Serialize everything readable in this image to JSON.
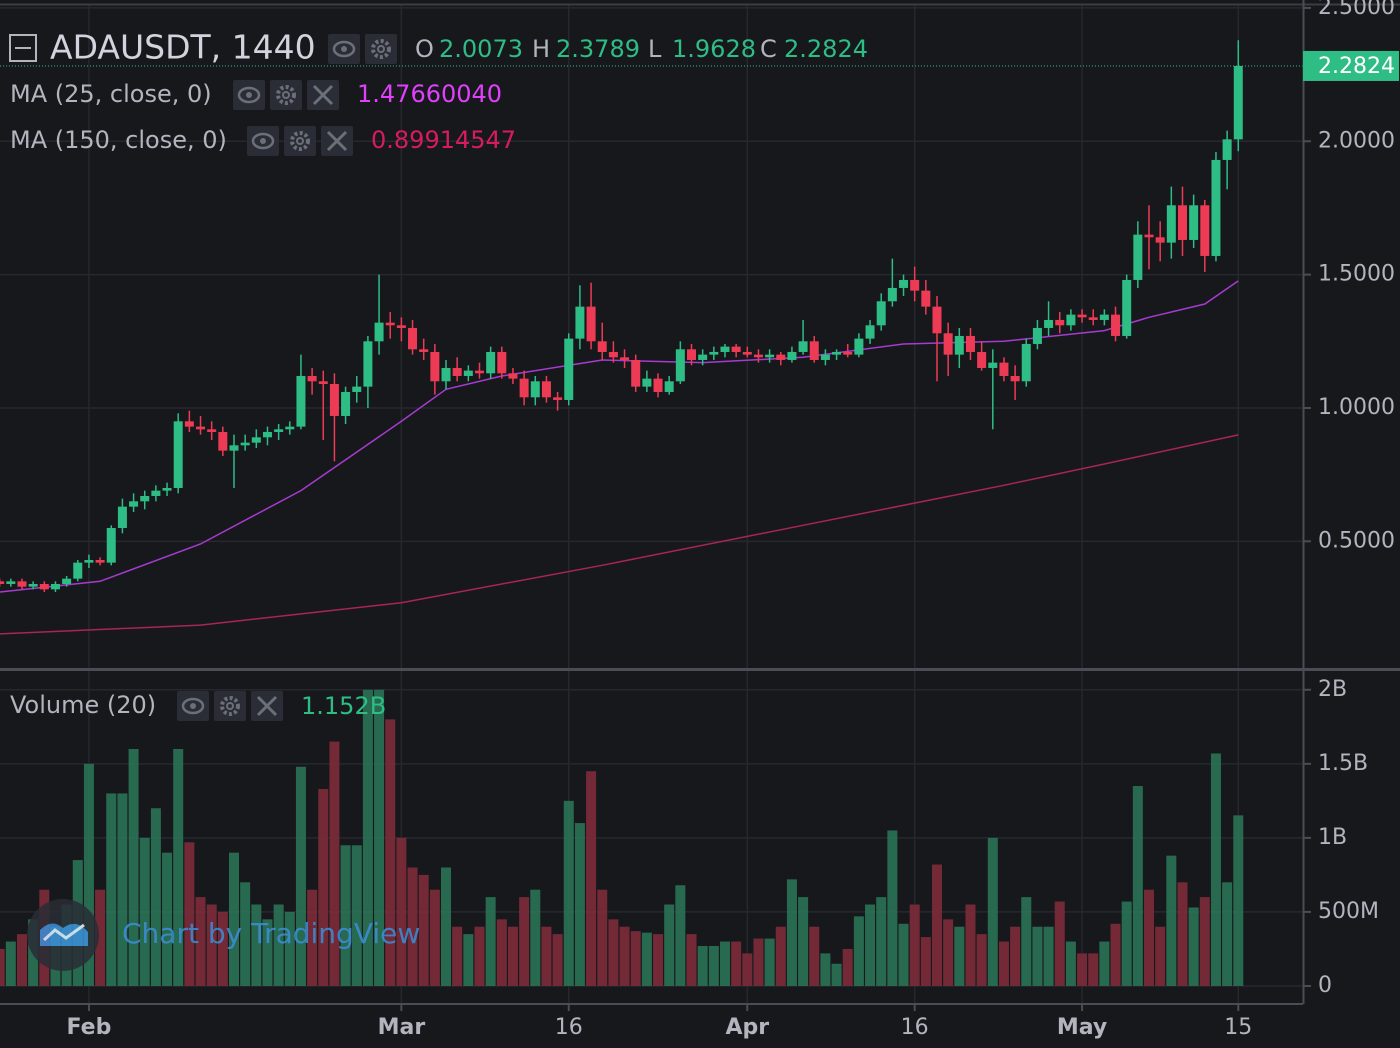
{
  "chart_data": {
    "type": "candlestick",
    "symbol": "ADAUSDT, 1440",
    "ohlc_labels": [
      "O",
      "H",
      "L",
      "C"
    ],
    "up_color": "#2ebd85",
    "down_color": "#ee3b55",
    "grid": true,
    "xlim": [
      23.03,
      139.8
    ],
    "xticks": [
      {
        "value": 31,
        "label": "Feb"
      },
      {
        "value": 59,
        "label": "Mar"
      },
      {
        "value": 74,
        "label": "16"
      },
      {
        "value": 90,
        "label": "Apr"
      },
      {
        "value": 105,
        "label": "16"
      },
      {
        "value": 120,
        "label": "May"
      },
      {
        "value": 134,
        "label": "15"
      }
    ],
    "ylim": [
      0.025,
      2.511
    ],
    "yticks": [
      {
        "value": 0.5,
        "label": "0.5000"
      },
      {
        "value": 1,
        "label": "1.0000"
      },
      {
        "value": 1.5,
        "label": "1.5000"
      },
      {
        "value": 2,
        "label": "2.0000"
      },
      {
        "value": 2.5,
        "label": "2.5000"
      }
    ],
    "x": [
      23,
      24,
      25,
      26,
      27,
      28,
      29,
      30,
      31,
      32,
      33,
      34,
      35,
      36,
      37,
      38,
      39,
      40,
      41,
      42,
      43,
      44,
      45,
      46,
      47,
      48,
      49,
      50,
      51,
      52,
      53,
      54,
      55,
      56,
      57,
      58,
      59,
      60,
      61,
      62,
      63,
      64,
      65,
      66,
      67,
      68,
      69,
      70,
      71,
      72,
      73,
      74,
      75,
      76,
      77,
      78,
      79,
      80,
      81,
      82,
      83,
      84,
      85,
      86,
      87,
      88,
      89,
      90,
      91,
      92,
      93,
      94,
      95,
      96,
      97,
      98,
      99,
      100,
      101,
      102,
      103,
      104,
      105,
      106,
      107,
      108,
      109,
      110,
      111,
      112,
      113,
      114,
      115,
      116,
      117,
      118,
      119,
      120,
      121,
      122,
      123,
      124,
      125,
      126,
      127,
      128,
      129,
      130,
      131,
      132,
      133,
      134
    ],
    "open": [
      0.35,
      0.34,
      0.35,
      0.33,
      0.34,
      0.32,
      0.34,
      0.36,
      0.42,
      0.43,
      0.42,
      0.55,
      0.63,
      0.65,
      0.67,
      0.69,
      0.7,
      0.95,
      0.93,
      0.92,
      0.91,
      0.84,
      0.86,
      0.87,
      0.89,
      0.91,
      0.92,
      0.93,
      1.12,
      1.1,
      1.09,
      0.97,
      1.06,
      1.08,
      1.25,
      1.32,
      1.31,
      1.3,
      1.22,
      1.21,
      1.1,
      1.15,
      1.12,
      1.14,
      1.13,
      1.21,
      1.13,
      1.11,
      1.04,
      1.1,
      1.04,
      1.03,
      1.26,
      1.38,
      1.25,
      1.21,
      1.19,
      1.18,
      1.08,
      1.11,
      1.06,
      1.1,
      1.22,
      1.18,
      1.2,
      1.21,
      1.23,
      1.21,
      1.2,
      1.19,
      1.2,
      1.18,
      1.21,
      1.25,
      1.18,
      1.2,
      1.21,
      1.2,
      1.26,
      1.31,
      1.4,
      1.45,
      1.48,
      1.44,
      1.38,
      1.28,
      1.2,
      1.27,
      1.21,
      1.15,
      1.17,
      1.12,
      1.1,
      1.24,
      1.3,
      1.33,
      1.31,
      1.35,
      1.34,
      1.33,
      1.35,
      1.27,
      1.48,
      1.65,
      1.64,
      1.62,
      1.76,
      1.63,
      1.76,
      1.57,
      1.93,
      2.0073
    ],
    "high": [
      0.36,
      0.36,
      0.36,
      0.35,
      0.35,
      0.35,
      0.37,
      0.43,
      0.45,
      0.44,
      0.56,
      0.66,
      0.68,
      0.69,
      0.71,
      0.72,
      0.98,
      0.99,
      0.97,
      0.95,
      0.93,
      0.9,
      0.9,
      0.92,
      0.93,
      0.94,
      0.95,
      1.2,
      1.15,
      1.14,
      1.13,
      1.08,
      1.12,
      1.27,
      1.5,
      1.36,
      1.34,
      1.33,
      1.26,
      1.24,
      1.18,
      1.19,
      1.16,
      1.17,
      1.23,
      1.23,
      1.15,
      1.14,
      1.12,
      1.12,
      1.06,
      1.28,
      1.46,
      1.47,
      1.32,
      1.25,
      1.22,
      1.2,
      1.14,
      1.13,
      1.12,
      1.25,
      1.24,
      1.22,
      1.23,
      1.24,
      1.24,
      1.23,
      1.22,
      1.22,
      1.21,
      1.23,
      1.33,
      1.27,
      1.22,
      1.22,
      1.24,
      1.28,
      1.33,
      1.43,
      1.56,
      1.5,
      1.53,
      1.48,
      1.42,
      1.32,
      1.3,
      1.3,
      1.25,
      1.22,
      1.19,
      1.16,
      1.26,
      1.33,
      1.4,
      1.36,
      1.37,
      1.37,
      1.37,
      1.37,
      1.38,
      1.5,
      1.7,
      1.76,
      1.7,
      1.83,
      1.83,
      1.8,
      1.78,
      1.96,
      2.04,
      2.3789
    ],
    "low": [
      0.33,
      0.33,
      0.32,
      0.32,
      0.31,
      0.31,
      0.33,
      0.35,
      0.4,
      0.41,
      0.41,
      0.53,
      0.61,
      0.62,
      0.65,
      0.67,
      0.68,
      0.91,
      0.9,
      0.88,
      0.82,
      0.7,
      0.84,
      0.85,
      0.86,
      0.88,
      0.9,
      0.92,
      1.05,
      0.88,
      0.8,
      0.94,
      1.02,
      1.0,
      1.2,
      1.26,
      1.25,
      1.2,
      1.18,
      1.05,
      1.07,
      1.1,
      1.1,
      1.11,
      1.11,
      1.11,
      1.09,
      1.01,
      1.01,
      1.02,
      0.99,
      1.01,
      1.22,
      1.22,
      1.18,
      1.17,
      1.15,
      1.06,
      1.06,
      1.04,
      1.05,
      1.09,
      1.16,
      1.16,
      1.18,
      1.19,
      1.19,
      1.19,
      1.17,
      1.17,
      1.16,
      1.17,
      1.2,
      1.17,
      1.16,
      1.18,
      1.19,
      1.19,
      1.24,
      1.29,
      1.38,
      1.42,
      1.4,
      1.35,
      1.1,
      1.12,
      1.15,
      1.18,
      1.14,
      0.92,
      1.1,
      1.03,
      1.08,
      1.22,
      1.27,
      1.28,
      1.29,
      1.32,
      1.31,
      1.31,
      1.25,
      1.26,
      1.45,
      1.52,
      1.55,
      1.56,
      1.57,
      1.6,
      1.51,
      1.55,
      1.82,
      1.9628
    ],
    "close": [
      0.34,
      0.35,
      0.33,
      0.34,
      0.32,
      0.34,
      0.36,
      0.42,
      0.43,
      0.42,
      0.55,
      0.63,
      0.65,
      0.67,
      0.69,
      0.7,
      0.95,
      0.93,
      0.92,
      0.91,
      0.84,
      0.86,
      0.87,
      0.89,
      0.91,
      0.92,
      0.93,
      1.12,
      1.1,
      1.09,
      0.97,
      1.06,
      1.08,
      1.25,
      1.32,
      1.31,
      1.3,
      1.22,
      1.21,
      1.1,
      1.15,
      1.12,
      1.14,
      1.13,
      1.21,
      1.13,
      1.11,
      1.04,
      1.1,
      1.04,
      1.03,
      1.26,
      1.38,
      1.25,
      1.21,
      1.19,
      1.18,
      1.08,
      1.11,
      1.06,
      1.1,
      1.22,
      1.18,
      1.2,
      1.21,
      1.23,
      1.21,
      1.2,
      1.19,
      1.2,
      1.18,
      1.21,
      1.25,
      1.18,
      1.2,
      1.21,
      1.2,
      1.26,
      1.31,
      1.4,
      1.45,
      1.48,
      1.44,
      1.38,
      1.28,
      1.2,
      1.27,
      1.21,
      1.15,
      1.17,
      1.12,
      1.1,
      1.24,
      1.3,
      1.33,
      1.31,
      1.35,
      1.34,
      1.33,
      1.35,
      1.27,
      1.48,
      1.65,
      1.64,
      1.62,
      1.76,
      1.63,
      1.76,
      1.57,
      1.93,
      2.0073,
      2.2824
    ],
    "moving_averages": [
      {
        "name": "MA (25, close, 0)",
        "color": "#a73bd0",
        "label_color": "#e040fb",
        "x": [
          23,
          32,
          41,
          50,
          59,
          63,
          68,
          77,
          86,
          95,
          104,
          113,
          122,
          126,
          131,
          134
        ],
        "values": [
          0.31,
          0.35,
          0.49,
          0.69,
          0.95,
          1.07,
          1.12,
          1.18,
          1.17,
          1.19,
          1.24,
          1.25,
          1.29,
          1.34,
          1.39,
          1.4766
        ],
        "legend_value": {
          "value": 1.4766004,
          "label": "1.47660040"
        }
      },
      {
        "name": "MA (150, close, 0)",
        "color": "#a8245a",
        "label_color": "#d81b60",
        "x": [
          23,
          41,
          59,
          77,
          95,
          113,
          122,
          134
        ],
        "values": [
          0.153,
          0.186,
          0.27,
          0.41,
          0.56,
          0.71,
          0.79,
          0.899
        ],
        "legend_value": {
          "value": 0.89914547,
          "label": "0.89914547"
        }
      }
    ],
    "volume": {
      "name": "Volume (20)",
      "up_color": "#2a7356",
      "down_color": "#7d2b3a",
      "ylim": [
        -115000000,
        2120000000
      ],
      "yticks": [
        0,
        {
          "value": 500000000,
          "label": "500M"
        },
        {
          "value": 1000000000,
          "label": "1B"
        },
        {
          "value": 1500000000,
          "label": "1.5B"
        },
        {
          "value": 2000000000,
          "label": "2B"
        }
      ],
      "values": [
        250000000.0,
        300000000.0,
        350000000.0,
        450000000.0,
        650000000.0,
        400000000.0,
        550000000.0,
        850000000.0,
        1500000000.0,
        650000000.0,
        1300000000.0,
        1300000000.0,
        1600000000.0,
        1000000000.0,
        1200000000.0,
        900000000.0,
        1600000000.0,
        970000000.0,
        600000000.0,
        550000000.0,
        500000000.0,
        900000000.0,
        700000000.0,
        550000000.0,
        450000000.0,
        550000000.0,
        500000000.0,
        1480000000.0,
        650000000.0,
        1330000000.0,
        1650000000.0,
        950000000.0,
        950000000.0,
        2000000000.0,
        2000000000.0,
        1800000000.0,
        1000000000.0,
        800000000.0,
        750000000.0,
        650000000.0,
        800000000.0,
        400000000.0,
        350000000.0,
        400000000.0,
        600000000.0,
        450000000.0,
        400000000.0,
        600000000.0,
        650000000.0,
        400000000.0,
        350000000.0,
        1250000000.0,
        1100000000.0,
        1450000000.0,
        650000000.0,
        450000000.0,
        400000000.0,
        370000000.0,
        360000000.0,
        350000000.0,
        550000000.0,
        680000000.0,
        350000000.0,
        270000000.0,
        270000000.0,
        300000000.0,
        300000000.0,
        220000000.0,
        320000000.0,
        320000000.0,
        400000000.0,
        720000000.0,
        600000000.0,
        400000000.0,
        220000000.0,
        150000000.0,
        250000000.0,
        470000000.0,
        550000000.0,
        600000000.0,
        1050000000.0,
        420000000.0,
        550000000.0,
        330000000.0,
        820000000.0,
        450000000.0,
        400000000.0,
        550000000.0,
        350000000.0,
        1000000000.0,
        300000000.0,
        400000000.0,
        600000000.0,
        400000000.0,
        400000000.0,
        570000000.0,
        300000000.0,
        220000000.0,
        220000000.0,
        300000000.0,
        420000000.0,
        570000000.0,
        1350000000.0,
        650000000.0,
        400000000.0,
        880000000.0,
        700000000.0,
        530000000.0,
        600000000.0,
        1570000000.0,
        700000000.0,
        1152000000.0
      ],
      "legend_value": {
        "value": 1152000000,
        "label": "1.152B"
      }
    },
    "watermark": "Chart by TradingView"
  }
}
